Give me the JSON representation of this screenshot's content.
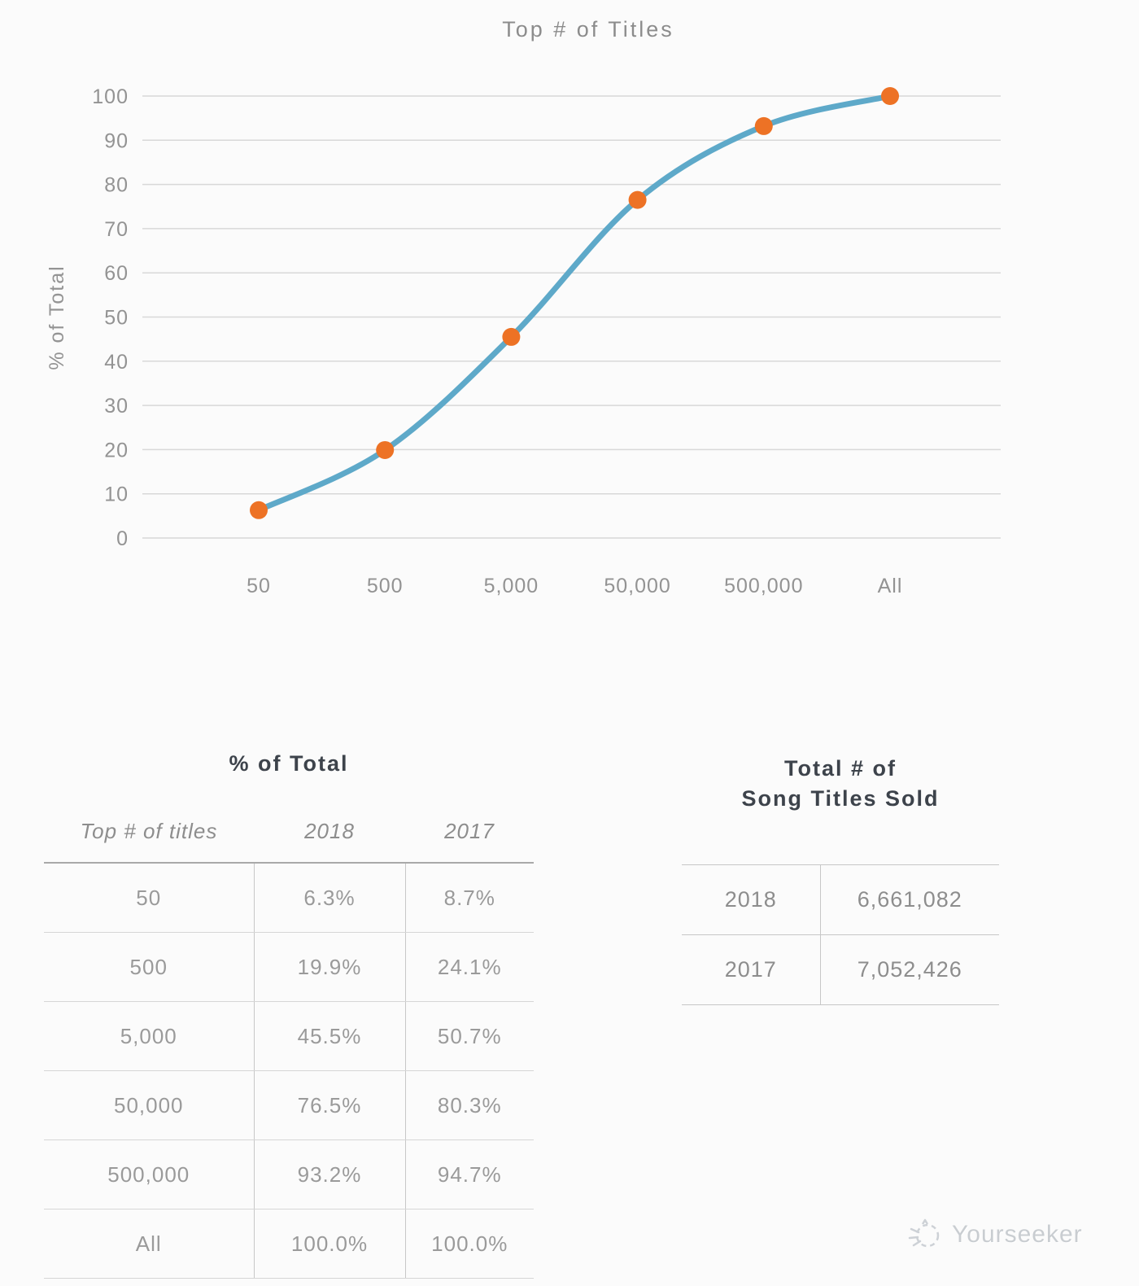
{
  "chart_data": {
    "type": "line",
    "title": "Top # of Titles",
    "xlabel": "",
    "ylabel": "% of Total",
    "categories": [
      "50",
      "500",
      "5,000",
      "50,000",
      "500,000",
      "All"
    ],
    "series": [
      {
        "name": "2018",
        "values": [
          6.3,
          19.9,
          45.5,
          76.5,
          93.2,
          100.0
        ]
      }
    ],
    "ylim": [
      0,
      100
    ],
    "ytick_step": 10,
    "grid": "horizontal-gridlines-only",
    "legend": "none",
    "line_color": "#5ea9c9",
    "marker_color": "#ed7225",
    "gridline_color": "#d8d8d8"
  },
  "tables": {
    "pct_of_total": {
      "title": "% of Total",
      "columns": [
        "Top # of titles",
        "2018",
        "2017"
      ],
      "rows": [
        {
          "label": "50",
          "y2018": "6.3%",
          "y2017": "8.7%"
        },
        {
          "label": "500",
          "y2018": "19.9%",
          "y2017": "24.1%"
        },
        {
          "label": "5,000",
          "y2018": "45.5%",
          "y2017": "50.7%"
        },
        {
          "label": "50,000",
          "y2018": "76.5%",
          "y2017": "80.3%"
        },
        {
          "label": "500,000",
          "y2018": "93.2%",
          "y2017": "94.7%"
        },
        {
          "label": "All",
          "y2018": "100.0%",
          "y2017": "100.0%"
        }
      ]
    },
    "song_titles_sold": {
      "title_line1": "Total # of",
      "title_line2": "Song Titles Sold",
      "rows": [
        {
          "label": "2018",
          "value": "6,661,082"
        },
        {
          "label": "2017",
          "value": "7,052,426"
        }
      ]
    }
  },
  "watermark": {
    "label": "Yourseeker"
  }
}
